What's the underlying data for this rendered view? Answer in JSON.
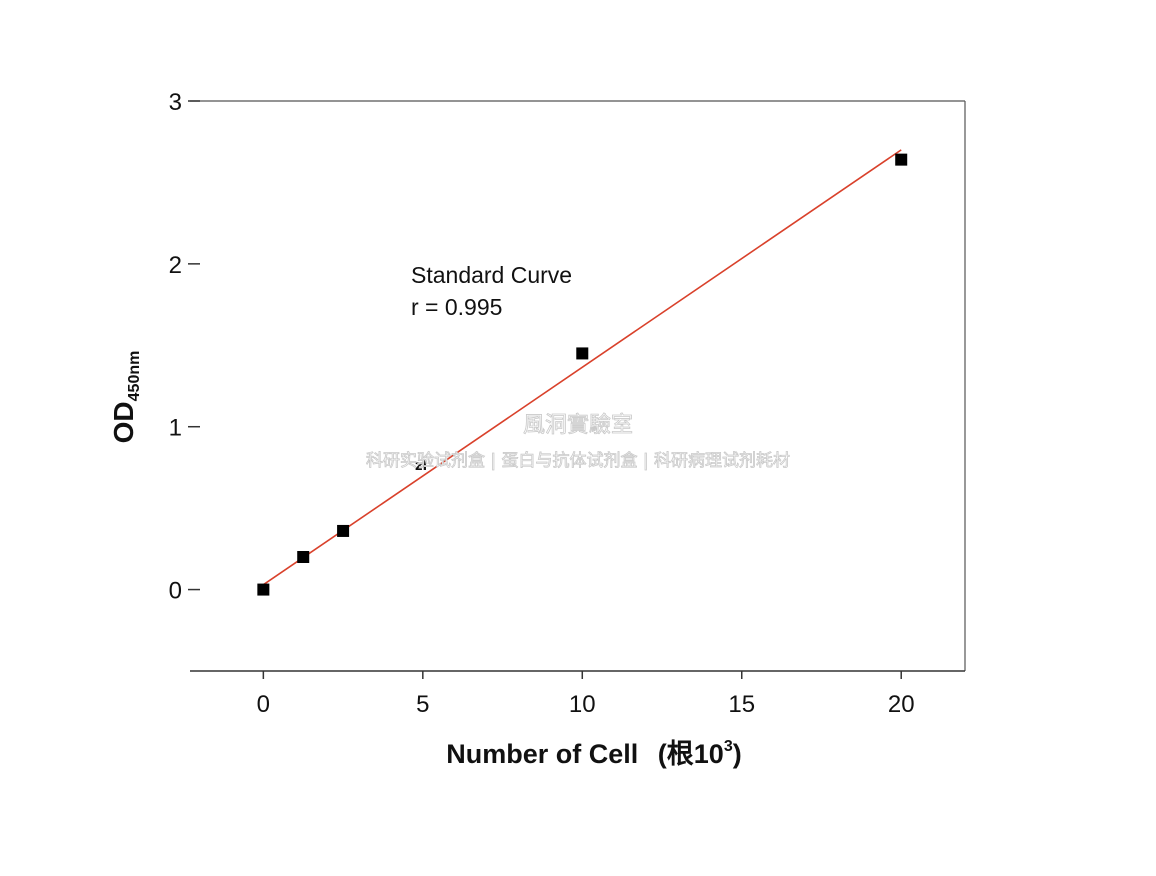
{
  "chart_data": {
    "type": "scatter",
    "xlabel": "Number of Cell",
    "xlabel_unit": "(根10",
    "xlabel_unit_sup": "3",
    "xlabel_unit_close": ")",
    "ylabel": "OD",
    "ylabel_sub": "450nm",
    "xlim": [
      -2.3,
      22
    ],
    "ylim": [
      -0.5,
      3
    ],
    "x_ticks": [
      0,
      5,
      10,
      15,
      20
    ],
    "y_ticks": [
      0,
      1,
      2,
      3
    ],
    "grid": false,
    "annotation": {
      "line1": "Standard Curve",
      "line2": "r = 0.995"
    },
    "series": [
      {
        "points": [
          {
            "x": 0,
            "y": 0.0
          },
          {
            "x": 1.25,
            "y": 0.2
          },
          {
            "x": 2.5,
            "y": 0.36
          },
          {
            "x": 10,
            "y": 1.45
          },
          {
            "x": 20,
            "y": 2.64
          }
        ]
      }
    ],
    "fit_line": {
      "x": [
        0,
        20
      ],
      "y": [
        0.03,
        2.7
      ],
      "color": "#d9412b"
    },
    "marker_color": "#000000",
    "overlay_text": "zl"
  },
  "watermark": {
    "line1": "風洞實驗室",
    "line2": "科研实验试剂盒 | 蛋白与抗体试剂盒 | 科研病理试剂耗材"
  }
}
